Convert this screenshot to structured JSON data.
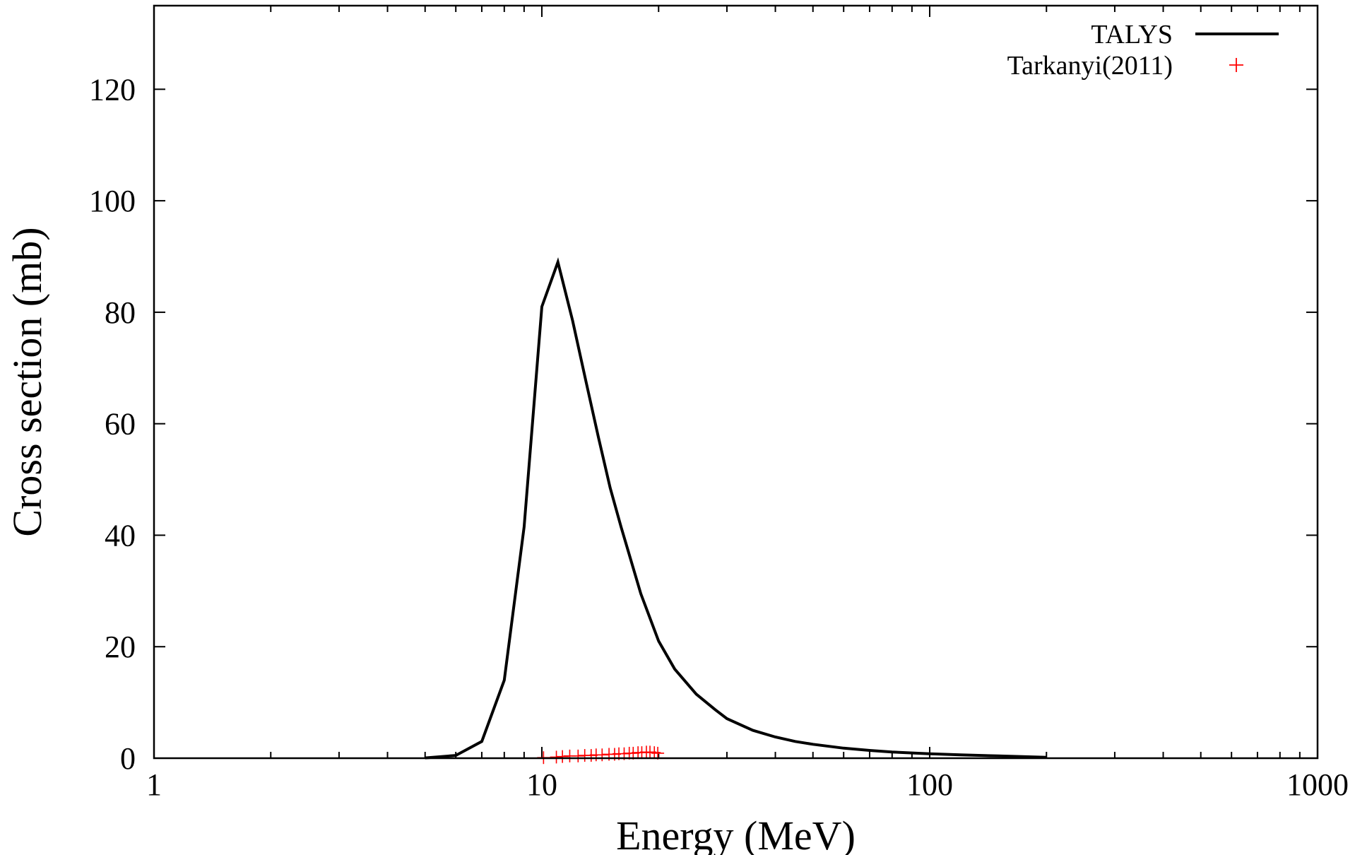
{
  "chart_data": {
    "type": "line",
    "xscale": "log",
    "xlim": [
      1,
      1000
    ],
    "ylim": [
      0,
      135
    ],
    "xlabel": "Energy (MeV)",
    "ylabel": "Cross section (mb)",
    "xticks": [
      1,
      10,
      100,
      1000
    ],
    "xtick_labels": [
      "1",
      "10",
      "100",
      "1000"
    ],
    "yticks": [
      0,
      20,
      40,
      60,
      80,
      100,
      120
    ],
    "ytick_labels": [
      "0",
      "20",
      "40",
      "60",
      "80",
      "100",
      "120"
    ],
    "grid": false,
    "legend_position": "top-right",
    "series": [
      {
        "name": "TALYS",
        "style": "line",
        "color": "#000000",
        "x": [
          5,
          6,
          7,
          8,
          9,
          10,
          11,
          12,
          13,
          14,
          15,
          16,
          18,
          20,
          22,
          25,
          28,
          30,
          35,
          40,
          45,
          50,
          60,
          70,
          80,
          100,
          120,
          150,
          200
        ],
        "y": [
          0.05,
          0.5,
          3.0,
          14.0,
          41.5,
          81.0,
          89.0,
          78.5,
          67.5,
          57.5,
          48.5,
          41.5,
          29.5,
          21.0,
          16.0,
          11.5,
          8.7,
          7.1,
          5.0,
          3.8,
          3.0,
          2.5,
          1.8,
          1.4,
          1.1,
          0.8,
          0.6,
          0.4,
          0.15
        ]
      },
      {
        "name": "Tarkanyi(2011)",
        "style": "points",
        "marker": "+",
        "color": "#ff0000",
        "x": [
          10.1,
          10.9,
          11.3,
          11.8,
          12.4,
          12.9,
          13.4,
          13.8,
          14.3,
          14.9,
          15.4,
          15.8,
          16.3,
          16.8,
          17.2,
          17.7,
          18.1,
          18.6,
          19.0,
          19.5,
          19.9
        ],
        "y": [
          0.1,
          0.2,
          0.3,
          0.4,
          0.4,
          0.5,
          0.5,
          0.6,
          0.6,
          0.7,
          0.7,
          0.8,
          0.8,
          0.9,
          0.9,
          1.0,
          1.0,
          1.1,
          1.1,
          1.0,
          0.9
        ]
      }
    ]
  }
}
